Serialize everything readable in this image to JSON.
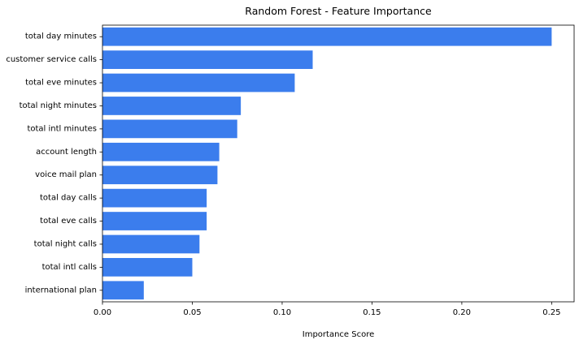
{
  "chart_data": {
    "type": "bar",
    "orientation": "horizontal",
    "title": "Random Forest - Feature Importance",
    "xlabel": "Importance Score",
    "ylabel": "",
    "xlim": [
      0,
      0.2625
    ],
    "xticks": [
      0.0,
      0.05,
      0.1,
      0.15,
      0.2,
      0.25
    ],
    "xtick_labels": [
      "0.00",
      "0.05",
      "0.10",
      "0.15",
      "0.20",
      "0.25"
    ],
    "grid": false,
    "bar_color": "#3b7ded",
    "categories": [
      "total day minutes",
      "customer service calls",
      "total eve minutes",
      "total night minutes",
      "total intl minutes",
      "account length",
      "voice mail plan",
      "total day calls",
      "total eve calls",
      "total night calls",
      "total intl calls",
      "international plan"
    ],
    "values": [
      0.25,
      0.117,
      0.107,
      0.077,
      0.075,
      0.065,
      0.064,
      0.058,
      0.058,
      0.054,
      0.05,
      0.023
    ]
  }
}
